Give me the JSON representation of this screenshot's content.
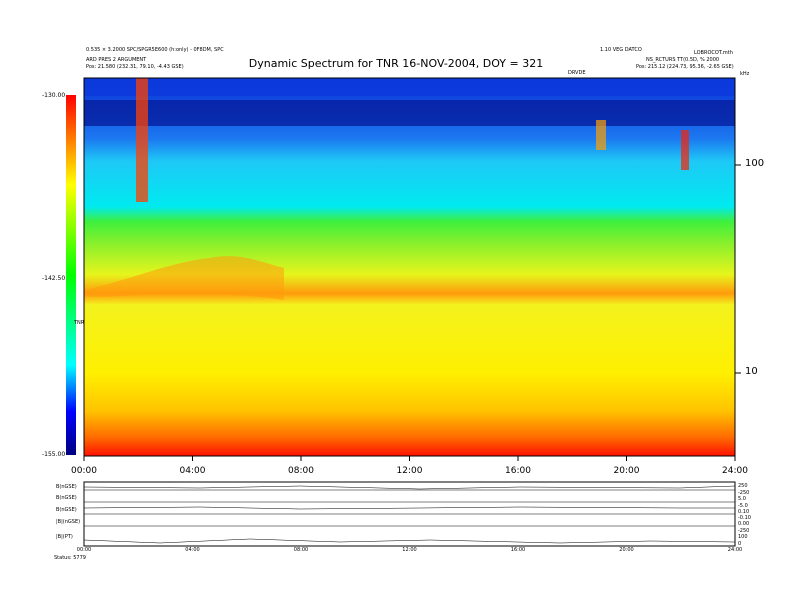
{
  "header": {
    "left_line1": "0.535 × 3.2000 SPC/SPGR5E600 (h:only) - 0F8DM, SPC",
    "left_line2": "ARD PRES 2 ARGUMENT",
    "left_line3": "Pos:  21.580 (232.31, 79.10, -4.43 GSE)",
    "right_line1": "1.10 VEG DATCO",
    "right_line2": "LOBROCOT.mth",
    "right_line3": "NS_RCTURS TT(0.5D, % 2000",
    "right_line4": "Pos:  215.12 (224.73, 95.36, -2.65 GSE)",
    "top_marker": "DRVDE",
    "freq_unit": "kHz",
    "colorbar_unit": "TNR"
  },
  "chart_data": {
    "type": "heatmap",
    "title": "Dynamic Spectrum for TNR 16-NOV-2004, DOY = 321",
    "x_ticks": [
      "00:00",
      "04:00",
      "08:00",
      "12:00",
      "16:00",
      "20:00",
      "24:00"
    ],
    "xlim": [
      0,
      24
    ],
    "y_scale": "log",
    "y_ticks": [
      "100",
      "10"
    ],
    "colorbar": {
      "ticks": [
        "-130.00",
        "-142.50",
        "-155.00"
      ],
      "range": [
        -155.0,
        -130.0
      ],
      "colors": [
        "#0000a0",
        "#0000ff",
        "#00ffff",
        "#ffff00",
        "#ff0000"
      ]
    }
  },
  "bottom_panels": {
    "labels": [
      "B(nGSE)",
      "B(nGSE)",
      "B(nGSE)",
      "|B|(nGSE)",
      "|B|(PT)"
    ],
    "right_ticks": [
      [
        "250",
        "-250"
      ],
      [
        "5.0",
        "-5.0"
      ],
      [
        "0.10",
        "-0.10"
      ],
      [
        "0.00",
        "-250"
      ],
      [
        "100",
        "0"
      ]
    ],
    "x_ticks": [
      "00:00",
      "04:00",
      "08:00",
      "12:00",
      "16:00",
      "20:00",
      "24:00"
    ],
    "footer_left": "Status:  5779"
  }
}
